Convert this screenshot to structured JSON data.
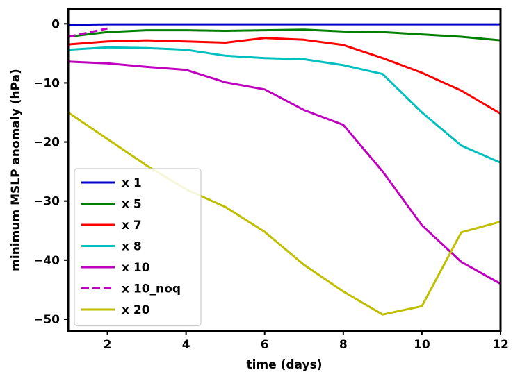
{
  "chart_data": {
    "type": "line",
    "title": "",
    "xlabel": "time (days)",
    "ylabel": "minimum MSLP anomaly (hPa)",
    "xlim": [
      1,
      12
    ],
    "ylim": [
      -52,
      2.5
    ],
    "xticks": [
      2,
      4,
      6,
      8,
      10,
      12
    ],
    "yticks": [
      0,
      -10,
      -20,
      -30,
      -40,
      -50
    ],
    "xtick_labels": [
      "2",
      "4",
      "6",
      "8",
      "10",
      "12"
    ],
    "ytick_labels": [
      "0",
      "−10",
      "−20",
      "−30",
      "−40",
      "−50"
    ],
    "grid": false,
    "legend_position": "lower-left",
    "series": [
      {
        "name": "x 1",
        "color": "#0000cc",
        "dash": "solid",
        "x": [
          1,
          2,
          3,
          4,
          5,
          6,
          7,
          8,
          9,
          10,
          11,
          12
        ],
        "y": [
          -0.2,
          -0.1,
          -0.1,
          -0.1,
          -0.1,
          -0.1,
          -0.1,
          -0.1,
          -0.1,
          -0.1,
          -0.1,
          -0.1
        ]
      },
      {
        "name": "x 5",
        "color": "#008000",
        "dash": "solid",
        "x": [
          1,
          2,
          3,
          4,
          5,
          6,
          7,
          8,
          9,
          10,
          11,
          12
        ],
        "y": [
          -2.2,
          -1.4,
          -1.1,
          -1.1,
          -1.2,
          -1.1,
          -1.0,
          -1.3,
          -1.4,
          -1.8,
          -2.2,
          -2.8
        ]
      },
      {
        "name": "x 7",
        "color": "#ff0000",
        "dash": "solid",
        "x": [
          1,
          2,
          3,
          4,
          5,
          6,
          7,
          8,
          9,
          10,
          11,
          12
        ],
        "y": [
          -3.5,
          -3.0,
          -2.8,
          -3.0,
          -3.2,
          -2.4,
          -2.7,
          -3.6,
          -5.8,
          -8.3,
          -11.3,
          -15.2
        ]
      },
      {
        "name": "x 8",
        "color": "#00bfbf",
        "dash": "solid",
        "x": [
          1,
          2,
          3,
          4,
          5,
          6,
          7,
          8,
          9,
          10,
          11,
          12
        ],
        "y": [
          -4.4,
          -4.0,
          -4.1,
          -4.4,
          -5.4,
          -5.8,
          -6.0,
          -7.0,
          -8.5,
          -15.0,
          -20.6,
          -23.5
        ]
      },
      {
        "name": "x 10",
        "color": "#bf00bf",
        "dash": "solid",
        "x": [
          1,
          2,
          3,
          4,
          5,
          6,
          7,
          8,
          9,
          10,
          11,
          12
        ],
        "y": [
          -6.4,
          -6.7,
          -7.3,
          -7.8,
          -9.9,
          -11.1,
          -14.6,
          -17.1,
          -25.0,
          -34.1,
          -40.3,
          -44.0
        ]
      },
      {
        "name": "x 10_noq",
        "color": "#bf00bf",
        "dash": "dashed",
        "x": [
          1,
          2
        ],
        "y": [
          -2.2,
          -0.8
        ]
      },
      {
        "name": "x 20",
        "color": "#bfbf00",
        "dash": "solid",
        "x": [
          1,
          2,
          3,
          4,
          5,
          6,
          7,
          8,
          9,
          10,
          11,
          12
        ],
        "y": [
          -15.0,
          -19.5,
          -24.0,
          -28.0,
          -31.0,
          -35.2,
          -40.8,
          -45.3,
          -49.2,
          -47.8,
          -35.3,
          -33.5
        ]
      }
    ]
  }
}
